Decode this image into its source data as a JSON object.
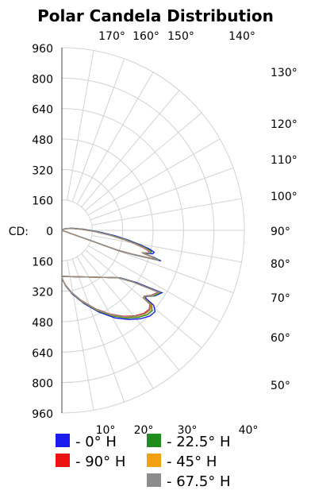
{
  "chart_data": {
    "type": "polar-line",
    "title": "Polar Candela Distribution",
    "radial_label": "CD:",
    "radial_ticks": [
      "960",
      "800",
      "640",
      "480",
      "320",
      "160",
      "0",
      "160",
      "320",
      "480",
      "640",
      "800",
      "960"
    ],
    "radial_max": 960,
    "angle_labels_top": [
      "170°",
      "160°",
      "150°",
      "140°"
    ],
    "angle_labels_right": [
      "130°",
      "120°",
      "110°",
      "100°",
      "90°",
      "80°",
      "70°",
      "60°",
      "50°"
    ],
    "angle_labels_bottom": [
      "10°",
      "20°",
      "30°",
      "40°"
    ],
    "legend": [
      {
        "label": "- 0° H",
        "color": "#1b1bf0"
      },
      {
        "label": "- 22.5° H",
        "color": "#1e8c1e"
      },
      {
        "label": "- 90° H",
        "color": "#ee1111"
      },
      {
        "label": "- 45° H",
        "color": "#f0a010"
      },
      {
        "label": "- 67.5° H",
        "color": "#8c8c8c"
      }
    ],
    "series": [
      {
        "name": "- 0° H",
        "color": "#1b1bf0",
        "points": [
          [
            0,
            0
          ],
          [
            5,
            35
          ],
          [
            10,
            110
          ],
          [
            15,
            215
          ],
          [
            20,
            335
          ],
          [
            25,
            460
          ],
          [
            30,
            560
          ],
          [
            35,
            615
          ],
          [
            40,
            645
          ],
          [
            45,
            655
          ],
          [
            50,
            640
          ],
          [
            55,
            590
          ],
          [
            60,
            510
          ],
          [
            62,
            500
          ],
          [
            65,
            540
          ],
          [
            70,
            560
          ],
          [
            80,
            395
          ],
          [
            87,
            305
          ],
          [
            90,
            0
          ]
        ]
      },
      {
        "name": "- 22.5° H",
        "color": "#1e8c1e",
        "points": [
          [
            0,
            0
          ],
          [
            5,
            35
          ],
          [
            10,
            105
          ],
          [
            15,
            205
          ],
          [
            20,
            320
          ],
          [
            25,
            440
          ],
          [
            30,
            535
          ],
          [
            35,
            595
          ],
          [
            40,
            625
          ],
          [
            45,
            635
          ],
          [
            50,
            620
          ],
          [
            55,
            575
          ],
          [
            60,
            500
          ],
          [
            62,
            495
          ],
          [
            65,
            535
          ],
          [
            70,
            550
          ],
          [
            80,
            385
          ],
          [
            87,
            300
          ],
          [
            90,
            0
          ]
        ]
      },
      {
        "name": "- 90° H",
        "color": "#ee1111",
        "points": [
          [
            0,
            0
          ],
          [
            5,
            30
          ],
          [
            10,
            95
          ],
          [
            15,
            190
          ],
          [
            20,
            300
          ],
          [
            25,
            415
          ],
          [
            30,
            510
          ],
          [
            35,
            570
          ],
          [
            40,
            600
          ],
          [
            45,
            610
          ],
          [
            50,
            600
          ],
          [
            55,
            565
          ],
          [
            60,
            495
          ],
          [
            62,
            490
          ],
          [
            65,
            520
          ],
          [
            70,
            540
          ],
          [
            80,
            380
          ],
          [
            87,
            295
          ],
          [
            90,
            0
          ]
        ]
      },
      {
        "name": "- 45° H",
        "color": "#f0a010",
        "points": [
          [
            0,
            0
          ],
          [
            5,
            32
          ],
          [
            10,
            100
          ],
          [
            15,
            197
          ],
          [
            20,
            310
          ],
          [
            25,
            428
          ],
          [
            30,
            522
          ],
          [
            35,
            582
          ],
          [
            40,
            612
          ],
          [
            45,
            622
          ],
          [
            50,
            610
          ],
          [
            55,
            570
          ],
          [
            60,
            497
          ],
          [
            62,
            492
          ],
          [
            65,
            528
          ],
          [
            70,
            545
          ],
          [
            80,
            382
          ],
          [
            87,
            297
          ],
          [
            90,
            0
          ]
        ]
      },
      {
        "name": "- 67.5° H",
        "color": "#8c8c8c",
        "points": [
          [
            0,
            0
          ],
          [
            5,
            31
          ],
          [
            10,
            97
          ],
          [
            15,
            193
          ],
          [
            20,
            305
          ],
          [
            25,
            420
          ],
          [
            30,
            515
          ],
          [
            35,
            576
          ],
          [
            40,
            606
          ],
          [
            45,
            616
          ],
          [
            50,
            605
          ],
          [
            55,
            567
          ],
          [
            60,
            496
          ],
          [
            62,
            491
          ],
          [
            65,
            524
          ],
          [
            70,
            542
          ],
          [
            80,
            381
          ],
          [
            87,
            296
          ],
          [
            90,
            0
          ]
        ]
      }
    ]
  }
}
